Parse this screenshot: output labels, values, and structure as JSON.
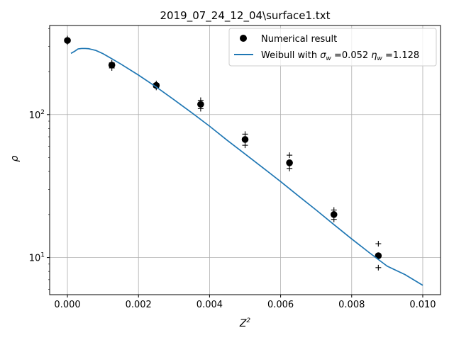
{
  "chart_data": {
    "type": "scatter",
    "title": "2019_07_24_12_04\\surface1.txt",
    "xlabel": "Z",
    "xlabel_sup": "2",
    "ylabel": "ρ",
    "xlim": [
      -0.0005,
      0.0105
    ],
    "ylim": [
      5.5,
      420
    ],
    "yscale": "log",
    "grid": true,
    "legend_position": "top-right",
    "x_ticks": [
      {
        "value": 0.0,
        "label": "0.000"
      },
      {
        "value": 0.002,
        "label": "0.002"
      },
      {
        "value": 0.004,
        "label": "0.004"
      },
      {
        "value": 0.006,
        "label": "0.006"
      },
      {
        "value": 0.008,
        "label": "0.008"
      },
      {
        "value": 0.01,
        "label": "0.010"
      }
    ],
    "y_ticks": [
      {
        "value": 10,
        "base": "10",
        "exp": "1"
      },
      {
        "value": 100,
        "base": "10",
        "exp": "2"
      }
    ],
    "series": [
      {
        "name": "Numerical result",
        "kind": "points",
        "color": "#000000",
        "x": [
          0.0,
          0.00125,
          0.0025,
          0.00375,
          0.005,
          0.00625,
          0.0075,
          0.00875
        ],
        "y": [
          330,
          222,
          160,
          118,
          67,
          46,
          20,
          10.3
        ]
      },
      {
        "name": "error_plus",
        "kind": "plus",
        "color": "#000000",
        "x": [
          0.0,
          0.0,
          0.00125,
          0.00125,
          0.0025,
          0.0025,
          0.00375,
          0.00375,
          0.005,
          0.005,
          0.00625,
          0.00625,
          0.0075,
          0.0075,
          0.00875,
          0.00875
        ],
        "y": [
          340,
          322,
          230,
          212,
          165,
          155,
          126,
          110,
          73,
          61,
          52,
          42,
          21.5,
          18.5,
          12.5,
          8.5
        ]
      },
      {
        "name_parts": [
          "Weibull with ",
          "σ",
          "w",
          " =0.052 ",
          "η",
          "w",
          " =1.128"
        ],
        "kind": "line",
        "color": "#1f77b4",
        "x": [
          0.0001,
          0.0002,
          0.0003,
          0.0004,
          0.0005,
          0.0006,
          0.0008,
          0.001,
          0.0012,
          0.0015,
          0.002,
          0.0025,
          0.003,
          0.0035,
          0.004,
          0.0045,
          0.005,
          0.0055,
          0.006,
          0.0065,
          0.007,
          0.0075,
          0.008,
          0.0085,
          0.009,
          0.0095,
          0.01
        ],
        "y": [
          268,
          277,
          288,
          290,
          290,
          289,
          281,
          267,
          250,
          226,
          189,
          156,
          127,
          103,
          83,
          66,
          53,
          42.5,
          34,
          27,
          21.5,
          17,
          13.5,
          10.8,
          8.7,
          7.6,
          6.4
        ]
      }
    ]
  }
}
